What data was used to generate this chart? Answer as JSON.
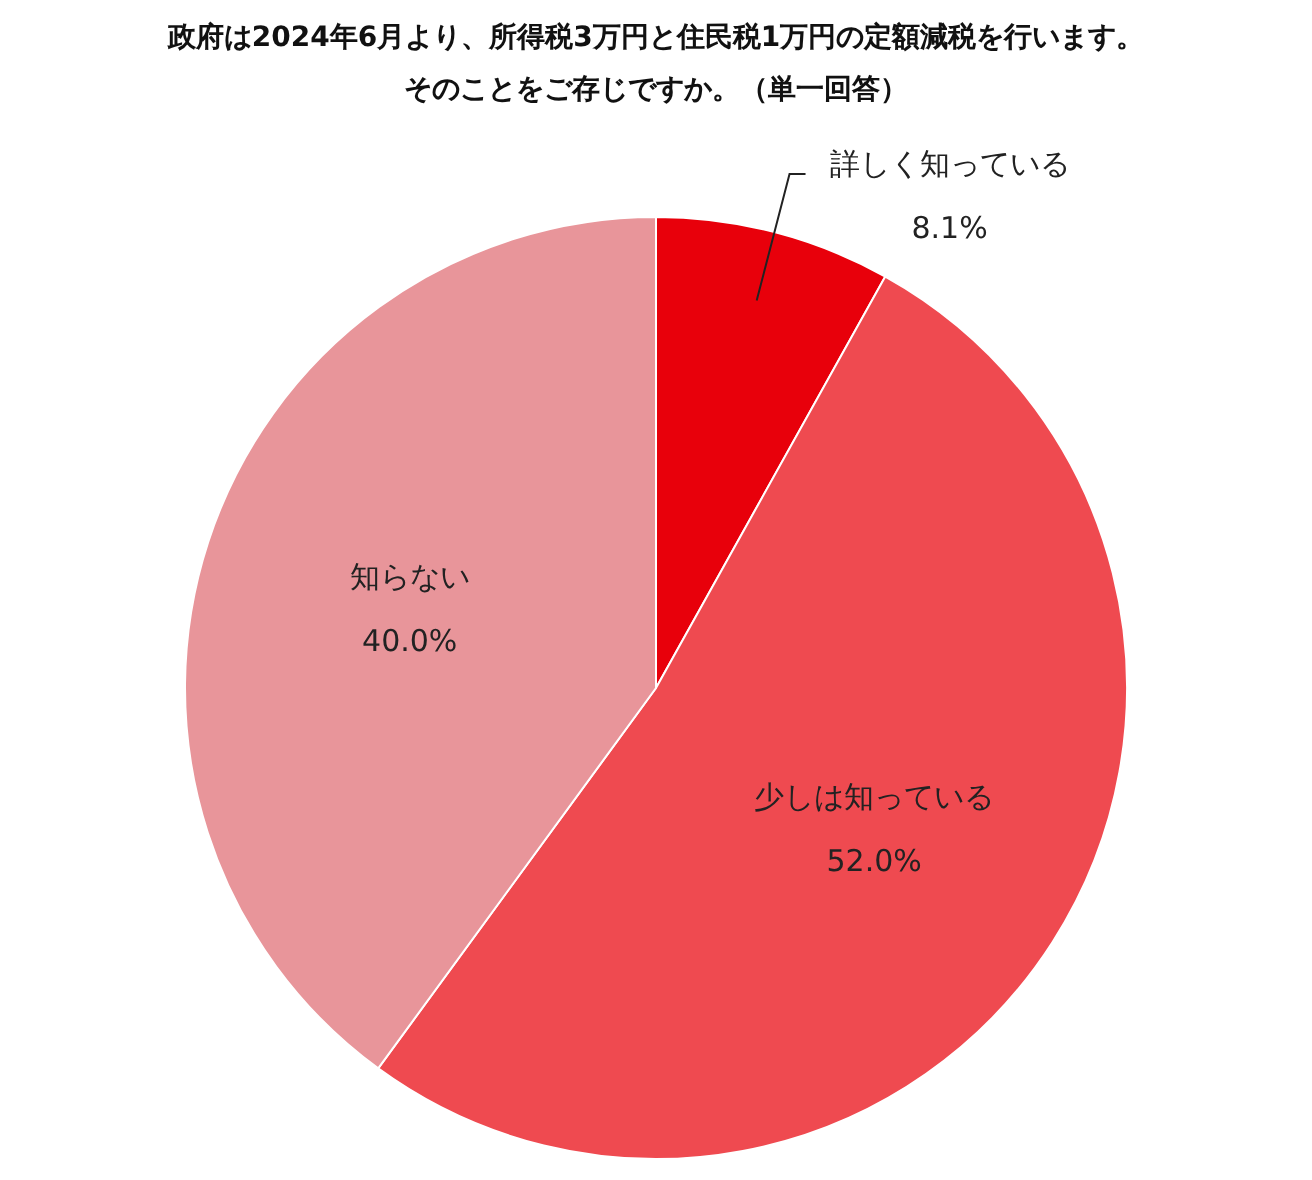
{
  "chart_data": {
    "type": "pie",
    "title": "政府は2024年6月より、所得税3万円と住民税1万円の定額減税を行います。",
    "subtitle": "そのことをご存じですか。（単一回答）",
    "categories": [
      "詳しく知っている",
      "少しは知っている",
      "知らない"
    ],
    "values": [
      8.1,
      52.0,
      40.0
    ],
    "colors": [
      "#e8000b",
      "#ef4a50",
      "#e8959a"
    ],
    "value_labels": [
      "8.1%",
      "52.0%",
      "40.0%"
    ],
    "legend": false
  }
}
